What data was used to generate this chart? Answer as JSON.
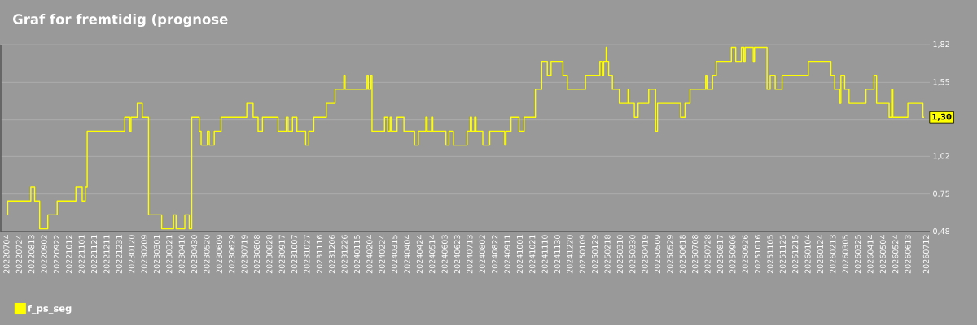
{
  "chart_data": {
    "type": "step",
    "title": "Graf for fremtidig (prognose",
    "xlim": [
      "2022-06-25",
      "2026-07-18"
    ],
    "xticks": [
      {
        "value": "2022-07-04",
        "label": "20220704"
      },
      {
        "value": "2022-07-24",
        "label": "20220724"
      },
      {
        "value": "2022-08-13",
        "label": "20220813"
      },
      {
        "value": "2022-09-02",
        "label": "20220902"
      },
      {
        "value": "2022-09-22",
        "label": "20220922"
      },
      {
        "value": "2022-10-12",
        "label": "20221012"
      },
      {
        "value": "2022-11-01",
        "label": "20221101"
      },
      {
        "value": "2022-11-21",
        "label": "20221121"
      },
      {
        "value": "2022-12-11",
        "label": "20221211"
      },
      {
        "value": "2022-12-31",
        "label": "20221231"
      },
      {
        "value": "2023-01-20",
        "label": "20230120"
      },
      {
        "value": "2023-02-09",
        "label": "20230209"
      },
      {
        "value": "2023-03-01",
        "label": "20230301"
      },
      {
        "value": "2023-03-21",
        "label": "20230321"
      },
      {
        "value": "2023-04-10",
        "label": "20230410"
      },
      {
        "value": "2023-04-30",
        "label": "20230430"
      },
      {
        "value": "2023-05-20",
        "label": "20230520"
      },
      {
        "value": "2023-06-09",
        "label": "20230609"
      },
      {
        "value": "2023-06-29",
        "label": "20230629"
      },
      {
        "value": "2023-07-19",
        "label": "20230719"
      },
      {
        "value": "2023-08-08",
        "label": "20230808"
      },
      {
        "value": "2023-08-28",
        "label": "20230828"
      },
      {
        "value": "2023-09-17",
        "label": "20230917"
      },
      {
        "value": "2023-10-07",
        "label": "20231007"
      },
      {
        "value": "2023-10-27",
        "label": "20231027"
      },
      {
        "value": "2023-11-16",
        "label": "20231116"
      },
      {
        "value": "2023-12-06",
        "label": "20231206"
      },
      {
        "value": "2023-12-26",
        "label": "20231226"
      },
      {
        "value": "2024-01-15",
        "label": "20240115"
      },
      {
        "value": "2024-02-04",
        "label": "20240204"
      },
      {
        "value": "2024-02-24",
        "label": "20240224"
      },
      {
        "value": "2024-03-15",
        "label": "20240315"
      },
      {
        "value": "2024-04-04",
        "label": "20240404"
      },
      {
        "value": "2024-04-24",
        "label": "20240424"
      },
      {
        "value": "2024-05-14",
        "label": "20240514"
      },
      {
        "value": "2024-06-03",
        "label": "20240603"
      },
      {
        "value": "2024-06-23",
        "label": "20240623"
      },
      {
        "value": "2024-07-13",
        "label": "20240713"
      },
      {
        "value": "2024-08-02",
        "label": "20240802"
      },
      {
        "value": "2024-08-22",
        "label": "20240822"
      },
      {
        "value": "2024-09-11",
        "label": "20240911"
      },
      {
        "value": "2024-10-01",
        "label": "20241001"
      },
      {
        "value": "2024-10-21",
        "label": "20241021"
      },
      {
        "value": "2024-11-10",
        "label": "20241110"
      },
      {
        "value": "2024-11-30",
        "label": "20241130"
      },
      {
        "value": "2024-12-20",
        "label": "20241220"
      },
      {
        "value": "2025-01-09",
        "label": "20250109"
      },
      {
        "value": "2025-01-29",
        "label": "20250129"
      },
      {
        "value": "2025-02-18",
        "label": "20250218"
      },
      {
        "value": "2025-03-10",
        "label": "20250310"
      },
      {
        "value": "2025-03-30",
        "label": "20250330"
      },
      {
        "value": "2025-04-19",
        "label": "20250419"
      },
      {
        "value": "2025-05-09",
        "label": "20250509"
      },
      {
        "value": "2025-05-29",
        "label": "20250529"
      },
      {
        "value": "2025-06-18",
        "label": "20250618"
      },
      {
        "value": "2025-07-08",
        "label": "20250708"
      },
      {
        "value": "2025-07-28",
        "label": "20250728"
      },
      {
        "value": "2025-08-17",
        "label": "20250817"
      },
      {
        "value": "2025-09-06",
        "label": "20250906"
      },
      {
        "value": "2025-09-26",
        "label": "20250926"
      },
      {
        "value": "2025-10-16",
        "label": "20251016"
      },
      {
        "value": "2025-11-05",
        "label": "20251105"
      },
      {
        "value": "2025-11-25",
        "label": "20251125"
      },
      {
        "value": "2025-12-15",
        "label": "20251215"
      },
      {
        "value": "2026-01-04",
        "label": "20260104"
      },
      {
        "value": "2026-01-24",
        "label": "20260124"
      },
      {
        "value": "2026-02-13",
        "label": "20260213"
      },
      {
        "value": "2026-03-05",
        "label": "20260305"
      },
      {
        "value": "2026-03-25",
        "label": "20260325"
      },
      {
        "value": "2026-04-14",
        "label": "20260414"
      },
      {
        "value": "2026-05-04",
        "label": "20260504"
      },
      {
        "value": "2026-05-24",
        "label": "20260524"
      },
      {
        "value": "2026-06-13",
        "label": "20260613"
      },
      {
        "value": "2026-07-12",
        "label": "20260712"
      }
    ],
    "ylim": [
      0.48,
      1.82
    ],
    "yticks": [
      {
        "value": 0.48,
        "label": "0,48"
      },
      {
        "value": 0.75,
        "label": "0,75"
      },
      {
        "value": 1.02,
        "label": "1,02"
      },
      {
        "value": 1.28,
        "label": null
      },
      {
        "value": 1.55,
        "label": "1,55"
      },
      {
        "value": 1.82,
        "label": "1,82"
      }
    ],
    "grid": "y",
    "legend": "bottom left",
    "annotations": [
      {
        "text": "1,30",
        "x": "2026-07-12",
        "y": 1.3
      }
    ],
    "series": [
      {
        "name": "f_ps_seg",
        "color": "#ffff00",
        "x": [
          "2022-07-04",
          "2022-07-06",
          "2022-08-12",
          "2022-08-18",
          "2022-08-26",
          "2022-09-08",
          "2022-09-23",
          "2022-10-23",
          "2022-11-02",
          "2022-11-07",
          "2022-11-10",
          "2023-01-09",
          "2023-01-17",
          "2023-01-19",
          "2023-01-29",
          "2023-02-06",
          "2023-02-16",
          "2023-03-09",
          "2023-03-28",
          "2023-04-01",
          "2023-04-15",
          "2023-04-22",
          "2023-04-26",
          "2023-05-08",
          "2023-05-11",
          "2023-05-21",
          "2023-05-24",
          "2023-06-01",
          "2023-06-12",
          "2023-07-23",
          "2023-08-02",
          "2023-08-10",
          "2023-08-17",
          "2023-09-11",
          "2023-09-24",
          "2023-09-27",
          "2023-10-04",
          "2023-10-11",
          "2023-10-25",
          "2023-10-30",
          "2023-11-07",
          "2023-11-27",
          "2023-12-11",
          "2023-12-25",
          "2023-12-27",
          "2024-01-31",
          "2024-02-02",
          "2024-02-06",
          "2024-02-08",
          "2024-02-28",
          "2024-03-04",
          "2024-03-08",
          "2024-03-10",
          "2024-03-19",
          "2024-03-30",
          "2024-04-16",
          "2024-04-22",
          "2024-05-04",
          "2024-05-06",
          "2024-05-13",
          "2024-05-15",
          "2024-06-05",
          "2024-06-10",
          "2024-06-17",
          "2024-07-09",
          "2024-07-14",
          "2024-07-16",
          "2024-07-21",
          "2024-07-23",
          "2024-08-03",
          "2024-08-14",
          "2024-09-07",
          "2024-09-09",
          "2024-09-17",
          "2024-09-30",
          "2024-10-08",
          "2024-10-26",
          "2024-11-05",
          "2024-11-14",
          "2024-11-20",
          "2024-12-09",
          "2024-12-16",
          "2025-01-14",
          "2025-02-06",
          "2025-02-10",
          "2025-02-12",
          "2025-02-16",
          "2025-02-17",
          "2025-02-20",
          "2025-02-26",
          "2025-03-09",
          "2025-03-23",
          "2025-03-24",
          "2025-04-02",
          "2025-04-08",
          "2025-04-25",
          "2025-05-06",
          "2025-05-09",
          "2025-06-15",
          "2025-06-22",
          "2025-06-30",
          "2025-07-25",
          "2025-07-27",
          "2025-08-05",
          "2025-08-11",
          "2025-09-04",
          "2025-09-11",
          "2025-09-20",
          "2025-09-24",
          "2025-09-26",
          "2025-10-09",
          "2025-10-11",
          "2025-10-31",
          "2025-11-05",
          "2025-11-13",
          "2025-11-24",
          "2026-01-05",
          "2026-02-10",
          "2026-02-16",
          "2026-02-24",
          "2026-02-26",
          "2026-03-04",
          "2026-03-11",
          "2026-04-07",
          "2026-04-20",
          "2026-04-24",
          "2026-05-14",
          "2026-05-18",
          "2026-05-20",
          "2026-06-13",
          "2026-07-07",
          "2026-07-09"
        ],
        "values": [
          0.6,
          0.7,
          0.8,
          0.7,
          0.5,
          0.6,
          0.7,
          0.8,
          0.7,
          0.8,
          1.2,
          1.3,
          1.2,
          1.3,
          1.4,
          1.3,
          0.6,
          0.5,
          0.6,
          0.5,
          0.6,
          0.5,
          1.3,
          1.2,
          1.1,
          1.2,
          1.1,
          1.2,
          1.3,
          1.4,
          1.3,
          1.2,
          1.3,
          1.2,
          1.3,
          1.2,
          1.3,
          1.2,
          1.1,
          1.2,
          1.3,
          1.4,
          1.5,
          1.6,
          1.5,
          1.6,
          1.5,
          1.6,
          1.2,
          1.3,
          1.2,
          1.3,
          1.2,
          1.3,
          1.2,
          1.1,
          1.2,
          1.3,
          1.2,
          1.3,
          1.2,
          1.1,
          1.2,
          1.1,
          1.2,
          1.3,
          1.2,
          1.3,
          1.2,
          1.1,
          1.2,
          1.1,
          1.2,
          1.3,
          1.2,
          1.3,
          1.5,
          1.7,
          1.6,
          1.7,
          1.6,
          1.5,
          1.6,
          1.7,
          1.6,
          1.7,
          1.8,
          1.7,
          1.6,
          1.5,
          1.4,
          1.5,
          1.4,
          1.3,
          1.4,
          1.5,
          1.2,
          1.4,
          1.3,
          1.4,
          1.5,
          1.6,
          1.5,
          1.6,
          1.7,
          1.8,
          1.7,
          1.8,
          1.7,
          1.8,
          1.7,
          1.8,
          1.5,
          1.6,
          1.5,
          1.6,
          1.7,
          1.6,
          1.5,
          1.4,
          1.6,
          1.5,
          1.4,
          1.5,
          1.6,
          1.4,
          1.3,
          1.5,
          1.3,
          1.4,
          1.3,
          1.3
        ]
      }
    ]
  }
}
